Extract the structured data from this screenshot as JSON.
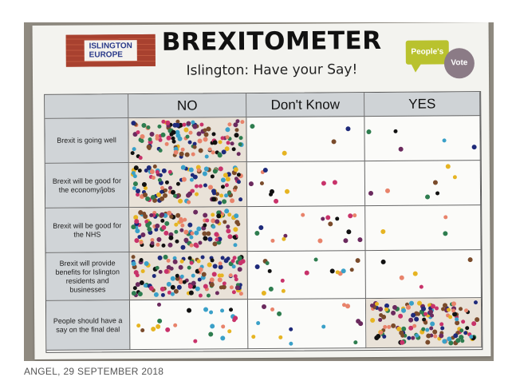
{
  "board": {
    "logo_left": [
      "ISLINGTON",
      "EUROPE"
    ],
    "title": "BREXITOMETER",
    "subtitle": "Islington: Have your Say!",
    "logo_right": [
      "People's",
      "Vote"
    ]
  },
  "table": {
    "columns": [
      "NO",
      "Don't Know",
      "YES"
    ],
    "rows": [
      "Brexit is going well",
      "Brexit will be good for the economy/jobs",
      "Brexit will be good for the NHS",
      "Brexit will provide benefits for Islington residents and businesses",
      "People should have a say on the final deal"
    ]
  },
  "caption": "ANGEL, 29 SEPTEMBER 2018",
  "colors": {
    "dot_palette": [
      "#e8836b",
      "#1e2a7a",
      "#2e7d4f",
      "#6b2a5e",
      "#c8326a",
      "#e6b422",
      "#7a4b2b",
      "#3aa0c8",
      "#111111"
    ],
    "board": "#f3f3ef",
    "header": "#cfd3d6"
  }
}
